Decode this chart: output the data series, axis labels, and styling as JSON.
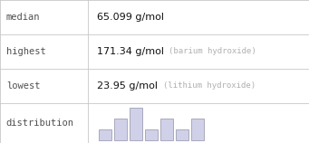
{
  "rows": [
    {
      "label": "median",
      "value": "65.099 g/mol",
      "sub": ""
    },
    {
      "label": "highest",
      "value": "171.34 g/mol",
      "sub": "(barium hydroxide)"
    },
    {
      "label": "lowest",
      "value": "23.95 g/mol",
      "sub": "(lithium hydroxide)"
    },
    {
      "label": "distribution",
      "value": "",
      "sub": ""
    }
  ],
  "table_bg": "#ffffff",
  "border_color": "#c8c8c8",
  "label_font_color": "#505050",
  "value_font_color": "#111111",
  "sub_font_color": "#b0b0b0",
  "label_font_size": 7.5,
  "value_font_size": 8,
  "sub_font_size": 6.5,
  "hist_bar_color": "#d0d0e8",
  "hist_bar_edge_color": "#9090a8",
  "hist_bars": [
    1,
    2,
    3,
    1,
    2,
    1,
    2
  ],
  "col_split": 0.285,
  "fig_width": 3.41,
  "fig_height": 1.58,
  "dpi": 100
}
